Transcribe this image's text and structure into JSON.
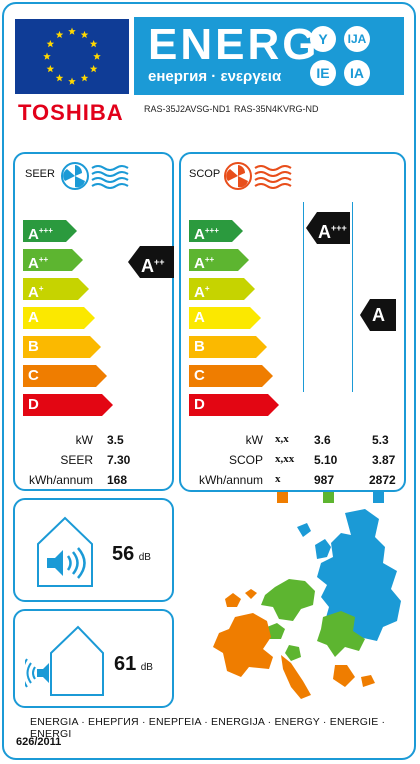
{
  "header": {
    "energy_word": "ENERG",
    "energy_sub": "енергия · ενεργεια",
    "circles": [
      "Y",
      "IJA",
      "IE",
      "IA"
    ],
    "brand": "TOSHIBA",
    "models": [
      "RAS-35J2AVSG-ND1",
      "RAS-35N4KVRG-ND"
    ]
  },
  "scale": [
    {
      "letter": "A",
      "plus": "+++",
      "color": "#2b9a3e"
    },
    {
      "letter": "A",
      "plus": "++",
      "color": "#5db530"
    },
    {
      "letter": "A",
      "plus": "+",
      "color": "#c6d300"
    },
    {
      "letter": "A",
      "plus": "",
      "color": "#fbe800"
    },
    {
      "letter": "B",
      "plus": "",
      "color": "#fbb900"
    },
    {
      "letter": "C",
      "plus": "",
      "color": "#ef7d00"
    },
    {
      "letter": "D",
      "plus": "",
      "color": "#e30613"
    }
  ],
  "seer": {
    "title": "SEER",
    "rating": {
      "letter": "A",
      "plus": "++"
    },
    "labels": {
      "kw": "kW",
      "seer": "SEER",
      "kwh": "kWh/annum"
    },
    "values": {
      "kw": "3.5",
      "seer": "7.30",
      "kwh": "168"
    }
  },
  "scop": {
    "title": "SCOP",
    "rating_mid": {
      "letter": "A",
      "plus": "+++"
    },
    "rating_right": {
      "letter": "A",
      "plus": ""
    },
    "labels": {
      "kw": "kW",
      "scop": "SCOP",
      "kwh": "kWh/annum"
    },
    "cols": [
      {
        "kw": "x,x",
        "scop": "x,xx",
        "kwh": "x",
        "color": "#ef7d00"
      },
      {
        "kw": "3.6",
        "scop": "5.10",
        "kwh": "987",
        "color": "#5db530"
      },
      {
        "kw": "5.3",
        "scop": "3.87",
        "kwh": "2872",
        "color": "#1b9ad6"
      }
    ]
  },
  "noise": {
    "indoor": {
      "value": "56",
      "unit": "dB"
    },
    "outdoor": {
      "value": "61",
      "unit": "dB"
    }
  },
  "footer": {
    "languages": "ENERGIA · ЕНЕРГИЯ · ΕΝΕΡΓΕΙΑ · ENERGIJA · ENERGY · ENERGIE · ENERGI",
    "regulation": "626/2011"
  },
  "colors": {
    "brand_blue": "#1b9ad6",
    "toshiba_red": "#e2001a",
    "eu_blue": "#0f3c96",
    "star_yellow": "#ffd800"
  },
  "icons": [
    "eu-flag-icon",
    "fan-cooling-icon",
    "fan-heating-icon",
    "speaker-icon",
    "europe-map-icon"
  ]
}
